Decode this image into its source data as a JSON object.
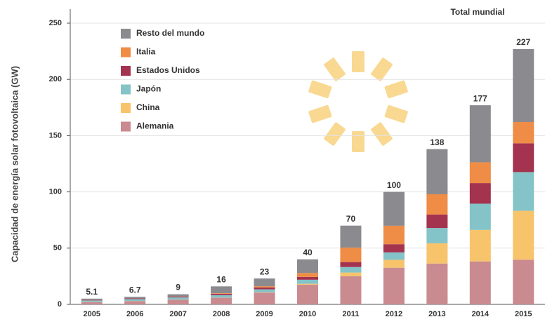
{
  "chart_data": {
    "type": "stacked_bar",
    "y_label": "Capacidad de energía solar fotovoltaica (GW)",
    "total_title": "Total mundial",
    "categories": [
      "2005",
      "2006",
      "2007",
      "2008",
      "2009",
      "2010",
      "2011",
      "2012",
      "2013",
      "2014",
      "2015"
    ],
    "series": [
      {
        "name": "Alemania",
        "color": "#c98b8f",
        "values": [
          2,
          2.9,
          4.2,
          6,
          10.5,
          17.5,
          25,
          32.6,
          36.3,
          38.2,
          39.7
        ]
      },
      {
        "name": "China",
        "color": "#f7c46c",
        "values": [
          0.1,
          0.1,
          0.1,
          0.1,
          0.3,
          0.8,
          3.3,
          7,
          18,
          28,
          43.5
        ]
      },
      {
        "name": "Japón",
        "color": "#84c3c8",
        "values": [
          1.4,
          1.7,
          1.9,
          2.1,
          2.6,
          3.6,
          4.9,
          6.6,
          13.6,
          23.3,
          34.4
        ]
      },
      {
        "name": "Estados Unidos",
        "color": "#a3334f",
        "values": [
          0.5,
          0.6,
          0.8,
          1.2,
          1.6,
          2.5,
          4.4,
          7.3,
          12,
          18.3,
          25.6
        ]
      },
      {
        "name": "Italia",
        "color": "#ef8c45",
        "values": [
          0.1,
          0.1,
          0.1,
          0.5,
          1.1,
          3.5,
          12.8,
          16.4,
          18,
          18.5,
          18.9
        ]
      },
      {
        "name": "Resto del mundo",
        "color": "#8a8a8f",
        "values": [
          1,
          1.3,
          1.9,
          6.1,
          6.9,
          12.1,
          19.6,
          30.1,
          40.1,
          50.7,
          64.9
        ]
      }
    ],
    "totals": [
      5.1,
      6.7,
      9,
      16,
      23,
      40,
      70,
      100,
      138,
      177,
      227
    ],
    "ylim": [
      0,
      250
    ],
    "yticks": [
      0,
      50,
      100,
      150,
      200,
      250
    ],
    "grid": true
  }
}
